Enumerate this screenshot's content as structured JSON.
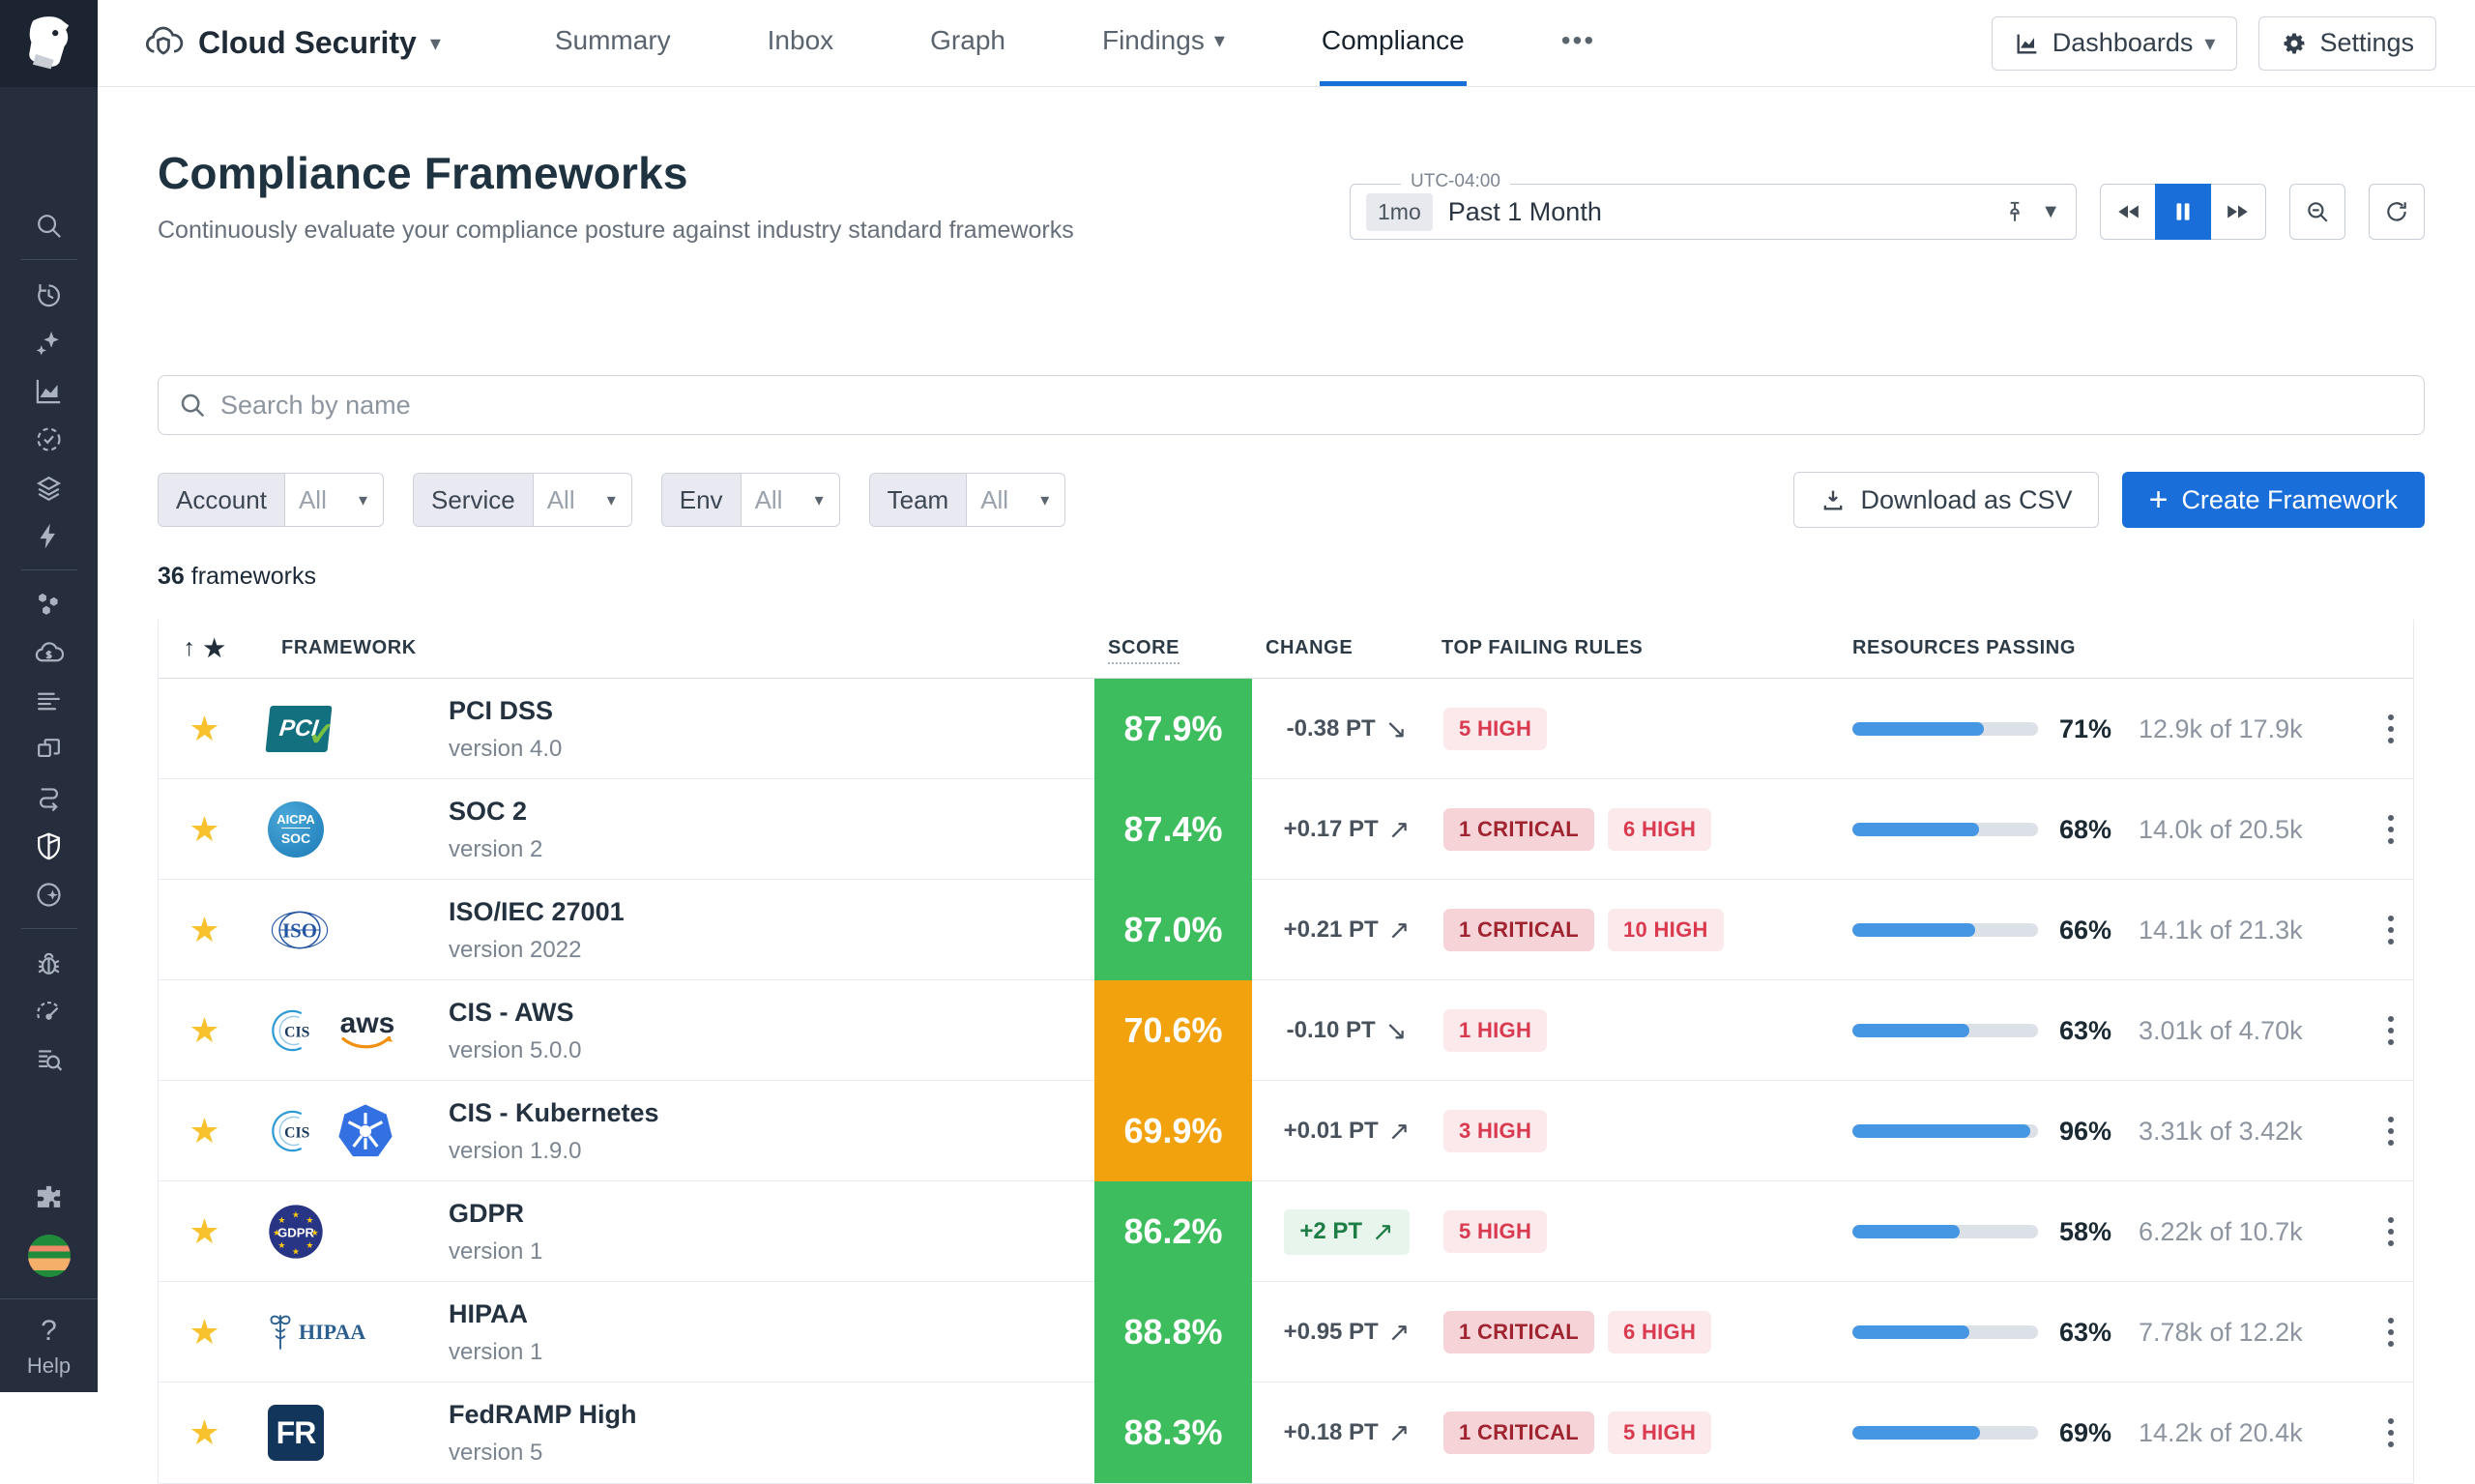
{
  "colors": {
    "accent": "#1a6ed9",
    "score_green": "#3ebd5e",
    "score_orange": "#f2a20d",
    "progress_blue": "#4597e3",
    "critical_text": "#9f2430",
    "critical_bg": "#f5d3d7",
    "high_text": "#d93a4f",
    "high_bg": "#fbe9ec",
    "star_yellow": "#f7c22d",
    "change_green": "#1e7d45"
  },
  "sidebar": {
    "items": [
      {
        "icon": "search"
      },
      {
        "divider": true
      },
      {
        "icon": "recent-history"
      },
      {
        "icon": "ai-sparkles"
      },
      {
        "icon": "metrics-chart"
      },
      {
        "icon": "service-check"
      },
      {
        "icon": "layers"
      },
      {
        "icon": "lightning"
      },
      {
        "divider": true
      },
      {
        "icon": "integrations-hex"
      },
      {
        "icon": "cloud-cost"
      },
      {
        "icon": "logs"
      },
      {
        "icon": "apps"
      },
      {
        "icon": "workflows"
      },
      {
        "icon": "security-shield",
        "active": true
      },
      {
        "icon": "watchdog"
      },
      {
        "divider": true
      },
      {
        "icon": "bug"
      },
      {
        "icon": "performance-gauge"
      },
      {
        "icon": "log-search"
      }
    ],
    "help_q": "?",
    "help_label": "Help"
  },
  "topnav": {
    "app_label": "Cloud Security",
    "tabs": [
      {
        "label": "Summary"
      },
      {
        "label": "Inbox"
      },
      {
        "label": "Graph"
      },
      {
        "label": "Findings",
        "caret": true
      },
      {
        "label": "Compliance",
        "active": true
      }
    ],
    "more_label": "•••",
    "dashboards_label": "Dashboards",
    "settings_label": "Settings"
  },
  "header": {
    "title": "Compliance Frameworks",
    "subtitle": "Continuously evaluate your compliance posture against industry standard frameworks"
  },
  "timebar": {
    "timezone": "UTC-04:00",
    "range_short": "1mo",
    "range_label": "Past 1 Month"
  },
  "search": {
    "placeholder": "Search by name"
  },
  "filters": [
    {
      "label": "Account",
      "value": "All"
    },
    {
      "label": "Service",
      "value": "All"
    },
    {
      "label": "Env",
      "value": "All"
    },
    {
      "label": "Team",
      "value": "All"
    }
  ],
  "actions": {
    "download_label": "Download as CSV",
    "create_label": "Create Framework"
  },
  "count": {
    "bold": "36",
    "rest": " frameworks"
  },
  "table": {
    "columns": {
      "framework": "FRAMEWORK",
      "score": "SCORE",
      "change": "CHANGE",
      "rules": "TOP FAILING RULES",
      "resources": "RESOURCES PASSING"
    },
    "rows": [
      {
        "name": "PCI DSS",
        "version": "version 4.0",
        "logo": "pci",
        "score": "87.9%",
        "score_level": "green",
        "change": "-0.38 PT",
        "change_dir": "down",
        "change_pill": false,
        "badges": [
          {
            "label": "5 HIGH",
            "type": "high"
          }
        ],
        "pass_pct": "71%",
        "pass_detail": "12.9k of 17.9k",
        "pass_value": 71
      },
      {
        "name": "SOC 2",
        "version": "version 2",
        "logo": "soc2",
        "score": "87.4%",
        "score_level": "green",
        "change": "+0.17 PT",
        "change_dir": "up",
        "change_pill": false,
        "badges": [
          {
            "label": "1 CRITICAL",
            "type": "critical"
          },
          {
            "label": "6 HIGH",
            "type": "high"
          }
        ],
        "pass_pct": "68%",
        "pass_detail": "14.0k of 20.5k",
        "pass_value": 68
      },
      {
        "name": "ISO/IEC 27001",
        "version": "version 2022",
        "logo": "iso",
        "score": "87.0%",
        "score_level": "green",
        "change": "+0.21 PT",
        "change_dir": "up",
        "change_pill": false,
        "badges": [
          {
            "label": "1 CRITICAL",
            "type": "critical"
          },
          {
            "label": "10 HIGH",
            "type": "high"
          }
        ],
        "pass_pct": "66%",
        "pass_detail": "14.1k of 21.3k",
        "pass_value": 66
      },
      {
        "name": "CIS - AWS",
        "version": "version 5.0.0",
        "logo": "cis-aws",
        "score": "70.6%",
        "score_level": "orange",
        "change": "-0.10 PT",
        "change_dir": "down",
        "change_pill": false,
        "badges": [
          {
            "label": "1 HIGH",
            "type": "high"
          }
        ],
        "pass_pct": "63%",
        "pass_detail": "3.01k of 4.70k",
        "pass_value": 63
      },
      {
        "name": "CIS - Kubernetes",
        "version": "version 1.9.0",
        "logo": "cis-k8s",
        "score": "69.9%",
        "score_level": "orange",
        "change": "+0.01 PT",
        "change_dir": "up",
        "change_pill": false,
        "badges": [
          {
            "label": "3 HIGH",
            "type": "high"
          }
        ],
        "pass_pct": "96%",
        "pass_detail": "3.31k of 3.42k",
        "pass_value": 96
      },
      {
        "name": "GDPR",
        "version": "version 1",
        "logo": "gdpr",
        "score": "86.2%",
        "score_level": "green",
        "change": "+2 PT",
        "change_dir": "up",
        "change_pill": true,
        "badges": [
          {
            "label": "5 HIGH",
            "type": "high"
          }
        ],
        "pass_pct": "58%",
        "pass_detail": "6.22k of 10.7k",
        "pass_value": 58
      },
      {
        "name": "HIPAA",
        "version": "version 1",
        "logo": "hipaa",
        "score": "88.8%",
        "score_level": "green",
        "change": "+0.95 PT",
        "change_dir": "up",
        "change_pill": false,
        "badges": [
          {
            "label": "1 CRITICAL",
            "type": "critical"
          },
          {
            "label": "6 HIGH",
            "type": "high"
          }
        ],
        "pass_pct": "63%",
        "pass_detail": "7.78k of 12.2k",
        "pass_value": 63
      },
      {
        "name": "FedRAMP High",
        "version": "version 5",
        "logo": "fedramp",
        "score": "88.3%",
        "score_level": "green",
        "change": "+0.18 PT",
        "change_dir": "up",
        "change_pill": false,
        "badges": [
          {
            "label": "1 CRITICAL",
            "type": "critical"
          },
          {
            "label": "5 HIGH",
            "type": "high"
          }
        ],
        "pass_pct": "69%",
        "pass_detail": "14.2k of 20.4k",
        "pass_value": 69
      }
    ]
  }
}
